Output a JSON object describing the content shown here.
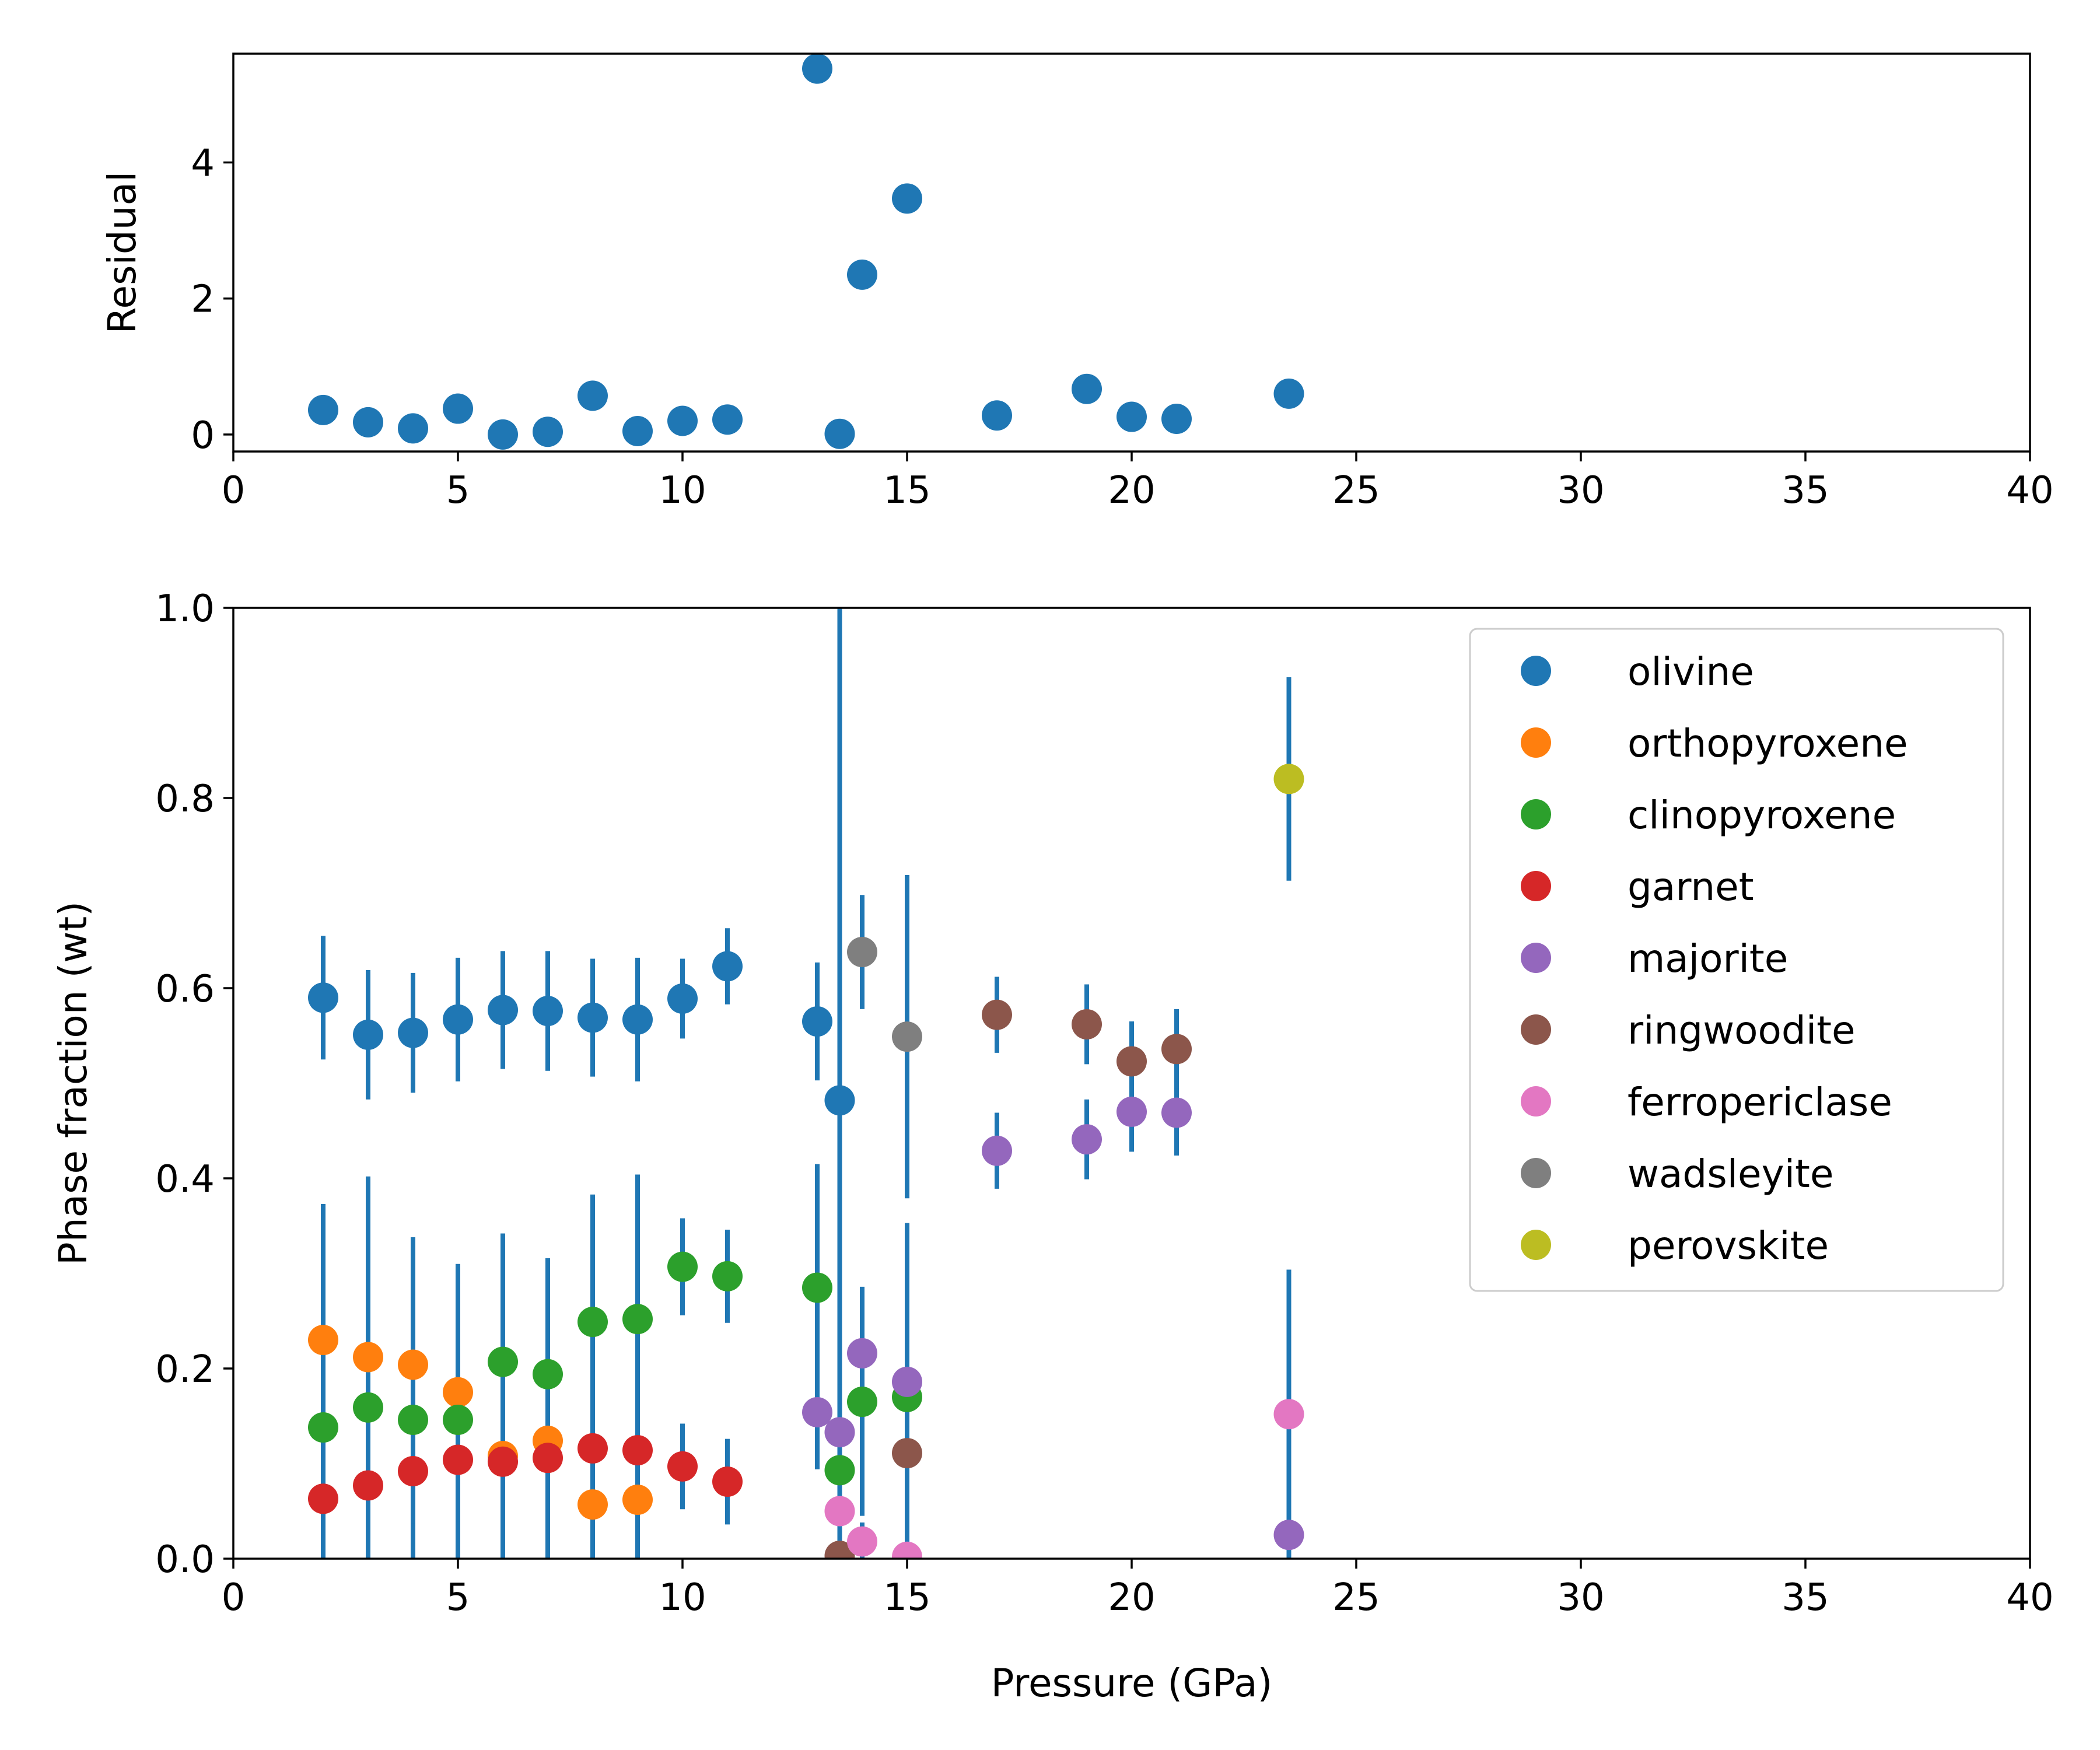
{
  "chart_data": [
    {
      "type": "scatter",
      "id": "residual",
      "xlabel": "",
      "ylabel": "Residual",
      "xlim": [
        0,
        40
      ],
      "ylim": [
        -0.25,
        5.6
      ],
      "xticks": [
        0,
        5,
        10,
        15,
        20,
        25,
        30,
        35,
        40
      ],
      "yticks": [
        0,
        2,
        4
      ],
      "grid": false,
      "series": [
        {
          "color": "#1f77b4",
          "x": [
            2,
            3,
            4,
            5,
            6,
            7,
            8,
            9,
            10,
            11,
            13,
            13.5,
            14,
            15,
            17,
            19,
            20,
            21,
            23.5
          ],
          "y": [
            0.36,
            0.18,
            0.09,
            0.38,
            0.0,
            0.04,
            0.57,
            0.05,
            0.2,
            0.22,
            5.38,
            0.01,
            2.35,
            3.47,
            0.28,
            0.67,
            0.26,
            0.23,
            0.6
          ]
        }
      ]
    },
    {
      "type": "scatter",
      "id": "phase",
      "xlabel": "Pressure (GPa)",
      "ylabel": "Phase fraction (wt)",
      "xlim": [
        0,
        40
      ],
      "ylim": [
        0,
        1
      ],
      "xticks": [
        0,
        5,
        10,
        15,
        20,
        25,
        30,
        35,
        40
      ],
      "yticks": [
        "0.0",
        "0.2",
        "0.4",
        "0.6",
        "0.8",
        "1.0"
      ],
      "grid": false,
      "legend_position": "upper right",
      "errorbar_color": "#1f77b4",
      "series": [
        {
          "name": "olivine",
          "color": "#1f77b4",
          "x": [
            2,
            3,
            4,
            5,
            6,
            7,
            8,
            9,
            10,
            11,
            13,
            13.5
          ],
          "y": [
            0.59,
            0.551,
            0.553,
            0.567,
            0.577,
            0.576,
            0.569,
            0.567,
            0.589,
            0.623,
            0.565,
            0.482
          ],
          "err": [
            0.065,
            0.068,
            0.063,
            0.065,
            0.062,
            0.063,
            0.062,
            0.065,
            0.042,
            0.04,
            0.062,
            0.55
          ]
        },
        {
          "name": "orthopyroxene",
          "color": "#ff7f0e",
          "x": [
            2,
            3,
            4,
            5,
            6,
            7,
            8,
            9
          ],
          "y": [
            0.23,
            0.212,
            0.204,
            0.175,
            0.108,
            0.124,
            0.057,
            0.062
          ],
          "err": [
            0,
            0,
            0,
            0,
            0,
            0,
            0,
            0
          ]
        },
        {
          "name": "clinopyroxene",
          "color": "#2ca02c",
          "x": [
            2,
            3,
            4,
            5,
            6,
            7,
            8,
            9,
            10,
            11,
            13,
            13.5,
            14,
            15
          ],
          "y": [
            0.138,
            0.159,
            0.146,
            0.146,
            0.207,
            0.194,
            0.249,
            0.252,
            0.307,
            0.297,
            0.285,
            0.093,
            0.165,
            0.17
          ],
          "err": [
            0.235,
            0.243,
            0.192,
            0.164,
            0.135,
            0.122,
            0.134,
            0.152,
            0.051,
            0.049,
            0.13,
            0.09,
            0.12,
            0.183
          ]
        },
        {
          "name": "garnet",
          "color": "#d62728",
          "x": [
            2,
            3,
            4,
            5,
            6,
            7,
            8,
            9,
            10,
            11
          ],
          "y": [
            0.063,
            0.077,
            0.092,
            0.104,
            0.102,
            0.106,
            0.116,
            0.114,
            0.097,
            0.081
          ],
          "err": [
            0.05,
            0.07,
            0.055,
            0.065,
            0.102,
            0.106,
            0.116,
            0.114,
            0.045,
            0.045
          ]
        },
        {
          "name": "majorite",
          "color": "#9467bd",
          "x": [
            13,
            13.5,
            14,
            15,
            17,
            19,
            20,
            21,
            23.5
          ],
          "y": [
            0.154,
            0.133,
            0.216,
            0.186,
            0.429,
            0.441,
            0.47,
            0.469,
            0.025
          ],
          "err": [
            0.06,
            0.03,
            0.07,
            0.04,
            0.04,
            0.042,
            0.042,
            0.045,
            0.025
          ]
        },
        {
          "name": "ringwoodite",
          "color": "#8c564b",
          "x": [
            13.5,
            15,
            17,
            19,
            20,
            21
          ],
          "y": [
            0.003,
            0.111,
            0.572,
            0.562,
            0.523,
            0.536
          ],
          "err": [
            0,
            0,
            0.04,
            0.042,
            0.042,
            0.042
          ]
        },
        {
          "name": "ferropericlase",
          "color": "#e377c2",
          "x": [
            13.5,
            14,
            15,
            23.5
          ],
          "y": [
            0.05,
            0.018,
            0.002,
            0.152
          ],
          "err": [
            0,
            0.02,
            0,
            0.152
          ]
        },
        {
          "name": "wadsleyite",
          "color": "#7f7f7f",
          "x": [
            14,
            15
          ],
          "y": [
            0.638,
            0.549
          ],
          "err": [
            0.06,
            0.17
          ]
        },
        {
          "name": "perovskite",
          "color": "#bcbd22",
          "x": [
            23.5
          ],
          "y": [
            0.82
          ],
          "err": [
            0.107
          ]
        }
      ]
    }
  ]
}
